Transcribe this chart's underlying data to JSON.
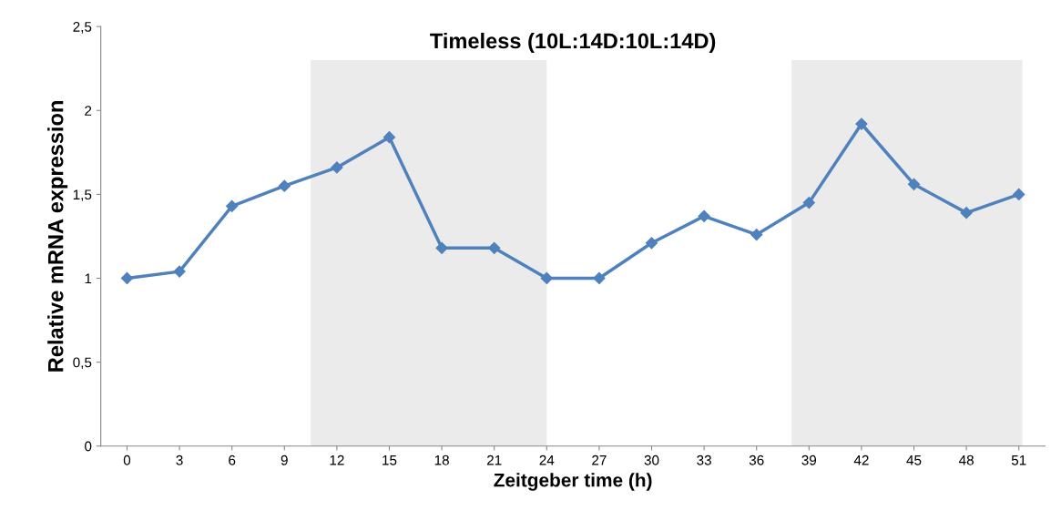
{
  "chart_data": {
    "type": "line",
    "title": "Timeless (10L:14D:10L:14D)",
    "xlabel": "Zeitgeber time (h)",
    "ylabel": "Relative mRNA expression",
    "x": [
      0,
      3,
      6,
      9,
      12,
      15,
      18,
      21,
      24,
      27,
      30,
      33,
      36,
      39,
      42,
      45,
      48,
      51
    ],
    "series": [
      {
        "color": "#4f81bd",
        "values": [
          1.0,
          1.04,
          1.43,
          1.55,
          1.66,
          1.84,
          1.18,
          1.18,
          1.0,
          1.0,
          1.21,
          1.37,
          1.26,
          1.45,
          1.92,
          1.56,
          1.39,
          1.5
        ]
      }
    ],
    "xlim": [
      -1.5,
      52.5
    ],
    "xticks": [
      0,
      3,
      6,
      9,
      12,
      15,
      18,
      21,
      24,
      27,
      30,
      33,
      36,
      39,
      42,
      45,
      48,
      51
    ],
    "ylim": [
      0,
      2.5
    ],
    "yticks": [
      0,
      {
        "value": 0.5,
        "label": "0,5"
      },
      1,
      {
        "value": 1.5,
        "label": "1,5"
      },
      2,
      {
        "value": 2.5,
        "label": "2,5"
      }
    ],
    "bands": [
      {
        "axis": "x",
        "from": 10.5,
        "to": 24,
        "color": "#ebebeb"
      },
      {
        "axis": "x",
        "from": 38,
        "to": 51.2,
        "color": "#ebebeb"
      }
    ],
    "marker": "diamond",
    "line_style": "solid",
    "grid": false,
    "legend": false
  }
}
